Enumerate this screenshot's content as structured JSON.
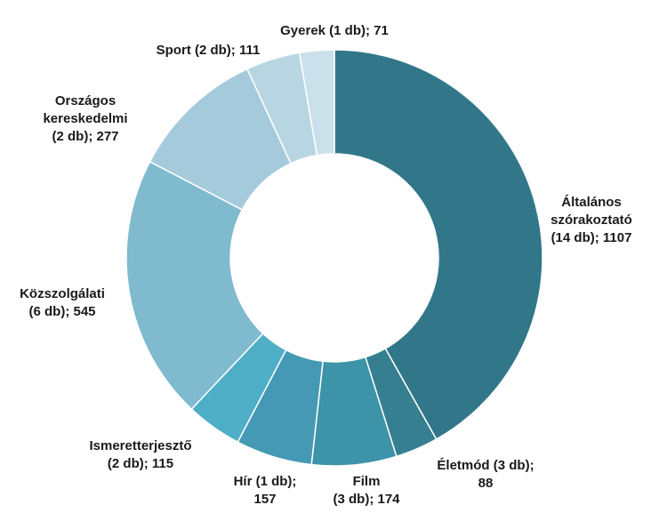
{
  "chart_data": {
    "type": "pie",
    "variant": "donut",
    "title": "",
    "categories": [
      "Általános szórakoztató",
      "Életmód",
      "Film",
      "Hír",
      "Ismeretterjesztő",
      "Közszolgálati",
      "Országos kereskedelmi",
      "Sport",
      "Gyerek"
    ],
    "values": [
      1107,
      88,
      174,
      157,
      115,
      545,
      277,
      111,
      71
    ],
    "labels": [
      "Általános\nszórakoztató\n(14 db); 1107",
      "Életmód (3 db);\n88",
      "Film\n(3 db); 174",
      "Hír (1 db);\n157",
      "Ismeretterjesztő\n(2 db); 115",
      "Közszolgálati\n(6 db); 545",
      "Országos\nkereskedelmi\n(2 db); 277",
      "Sport (2 db); 111",
      "Gyerek (1 db); 71"
    ],
    "colors": [
      "#317789",
      "#367f91",
      "#3d93a8",
      "#4599b4",
      "#4eaec6",
      "#7fbacf",
      "#a5cadb",
      "#b8d6e2",
      "#cae0ea"
    ],
    "legend": "none",
    "start_angle": "12 o'clock",
    "direction": "clockwise"
  }
}
